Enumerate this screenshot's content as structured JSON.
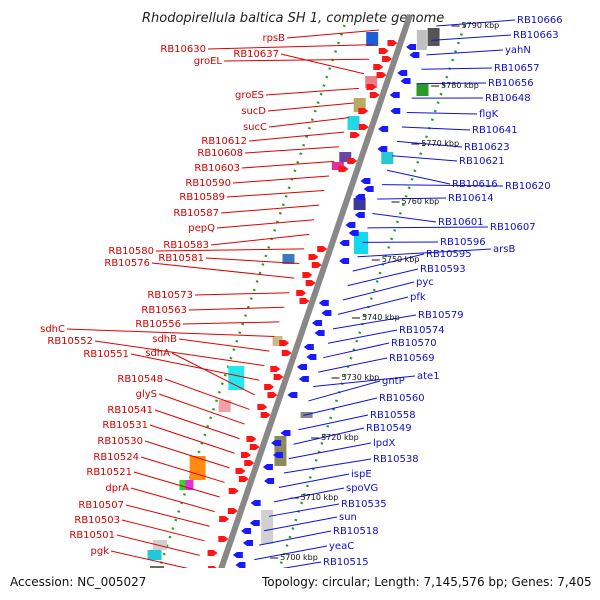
{
  "title": "Rhodopirellula baltica SH 1, complete genome",
  "footer": {
    "accession": "Accession: NC_005027",
    "topology": "Topology: circular; Length: 7,145,576 bp; Genes: 7,405"
  },
  "colors": {
    "left_label": "#d40000",
    "right_label": "#1010c8",
    "left_line": "#e00000",
    "right_line": "#1010e0",
    "axis": "#888888",
    "tick": "#22a022",
    "fwd_arrow": "#ff1515",
    "rev_arrow": "#1a1aff"
  },
  "kbp_ticks": [
    "5790 kbp",
    "5780 kbp",
    "5770 kbp",
    "5760 kbp",
    "5750 kbp",
    "5740 kbp",
    "5730 kbp",
    "5720 kbp",
    "5710 kbp",
    "5700 kbp"
  ],
  "left_genes": [
    "rpsB",
    "RB10630",
    "groEL",
    "RB10637",
    "groES",
    "sucD",
    "sucC",
    "RB10612",
    "RB10608",
    "RB10603",
    "RB10590",
    "RB10589",
    "RB10587",
    "pepQ",
    "RB10583",
    "RB10580",
    "RB10581",
    "RB10576",
    "RB10573",
    "RB10563",
    "RB10556",
    "sdhC",
    "sdhB",
    "RB10552",
    "RB10551",
    "sdhA",
    "RB10548",
    "glyS",
    "RB10541",
    "RB10531",
    "RB10530",
    "RB10524",
    "RB10521",
    "dprA",
    "RB10507",
    "RB10503",
    "RB10501",
    "pgk"
  ],
  "right_genes": [
    "RB10666",
    "RB10663",
    "yahN",
    "RB10657",
    "RB10656",
    "RB10648",
    "flgK",
    "RB10641",
    "RB10623",
    "RB10621",
    "RB10616",
    "RB10620",
    "RB10614",
    "RB10601",
    "RB10607",
    "RB10596",
    "arsB",
    "RB10595",
    "RB10593",
    "pyc",
    "pfk",
    "RB10579",
    "RB10574",
    "RB10570",
    "RB10569",
    "ate1",
    "gntP",
    "RB10560",
    "RB10558",
    "RB10549",
    "lpdX",
    "RB10538",
    "ispE",
    "spoVG",
    "RB10535",
    "sun",
    "RB10518",
    "yeaC",
    "RB10515"
  ]
}
